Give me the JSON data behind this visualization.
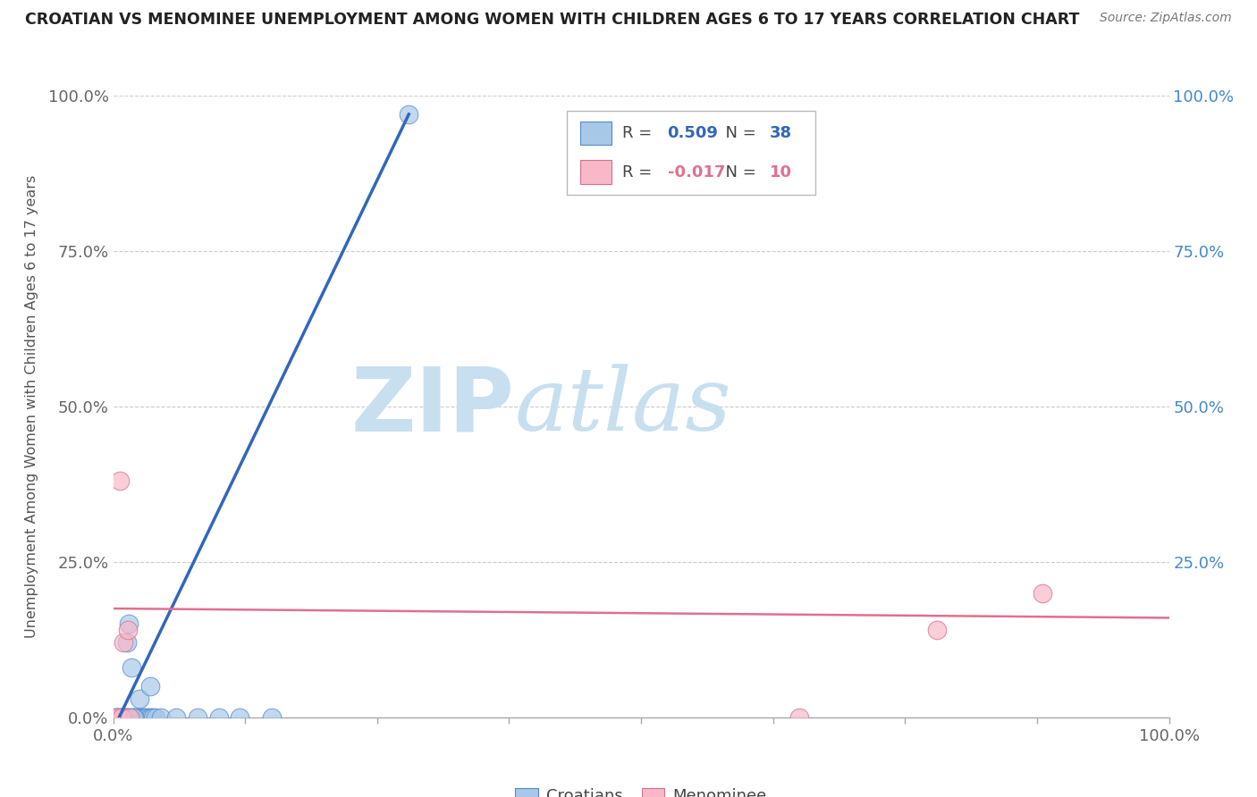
{
  "title": "CROATIAN VS MENOMINEE UNEMPLOYMENT AMONG WOMEN WITH CHILDREN AGES 6 TO 17 YEARS CORRELATION CHART",
  "source": "Source: ZipAtlas.com",
  "ylabel": "Unemployment Among Women with Children Ages 6 to 17 years",
  "xlim": [
    0.0,
    1.0
  ],
  "ylim": [
    0.0,
    1.0
  ],
  "ytick_positions": [
    0.0,
    0.25,
    0.5,
    0.75,
    1.0
  ],
  "ytick_labels": [
    "0.0%",
    "25.0%",
    "50.0%",
    "75.0%",
    "100.0%"
  ],
  "right_ytick_labels": [
    "100.0%",
    "75.0%",
    "50.0%",
    "25.0%"
  ],
  "right_ytick_positions": [
    1.0,
    0.75,
    0.5,
    0.25
  ],
  "xtick_positions": [
    0.0,
    0.125,
    0.25,
    0.375,
    0.5,
    0.625,
    0.75,
    0.875,
    1.0
  ],
  "xtick_labels_show": [
    "0.0%",
    "",
    "",
    "",
    "",
    "",
    "",
    "",
    "100.0%"
  ],
  "croatians_R": 0.509,
  "croatians_N": 38,
  "menominee_R": -0.017,
  "menominee_N": 10,
  "croatians_color": "#a8c8e8",
  "croatians_edge": "#5588cc",
  "menominee_color": "#f8b8c8",
  "menominee_edge": "#d07090",
  "trendline_croatians_color": "#3366bb",
  "trendline_menominee_color": "#e07090",
  "croatians_x": [
    0.002,
    0.004,
    0.006,
    0.008,
    0.01,
    0.012,
    0.014,
    0.016,
    0.018,
    0.02,
    0.022,
    0.024,
    0.026,
    0.028,
    0.03,
    0.032,
    0.034,
    0.036,
    0.038,
    0.04,
    0.004,
    0.007,
    0.009,
    0.011,
    0.013,
    0.015,
    0.017,
    0.019,
    0.025,
    0.035,
    0.045,
    0.06,
    0.08,
    0.1,
    0.12,
    0.15,
    0.02,
    0.28
  ],
  "croatians_y": [
    0.0,
    0.0,
    0.0,
    0.0,
    0.0,
    0.0,
    0.0,
    0.0,
    0.0,
    0.0,
    0.0,
    0.0,
    0.0,
    0.0,
    0.0,
    0.0,
    0.0,
    0.0,
    0.0,
    0.0,
    0.0,
    0.0,
    0.0,
    0.0,
    0.12,
    0.15,
    0.08,
    0.0,
    0.03,
    0.05,
    0.0,
    0.0,
    0.0,
    0.0,
    0.0,
    0.0,
    0.0,
    0.97
  ],
  "menominee_x": [
    0.002,
    0.004,
    0.006,
    0.008,
    0.01,
    0.014,
    0.016,
    0.65,
    0.78,
    0.88
  ],
  "menominee_y": [
    0.0,
    0.0,
    0.38,
    0.0,
    0.12,
    0.14,
    0.0,
    0.0,
    0.14,
    0.2
  ],
  "cr_trendline_x0": 0.0,
  "cr_trendline_y0": -0.02,
  "cr_trendline_x1": 0.28,
  "cr_trendline_y1": 0.97,
  "mn_trendline_x0": 0.0,
  "mn_trendline_y0": 0.175,
  "mn_trendline_x1": 1.0,
  "mn_trendline_y1": 0.16,
  "background_color": "#ffffff",
  "grid_color": "#cccccc",
  "watermark_zip": "ZIP",
  "watermark_atlas": "atlas",
  "watermark_color": "#c8dff0"
}
